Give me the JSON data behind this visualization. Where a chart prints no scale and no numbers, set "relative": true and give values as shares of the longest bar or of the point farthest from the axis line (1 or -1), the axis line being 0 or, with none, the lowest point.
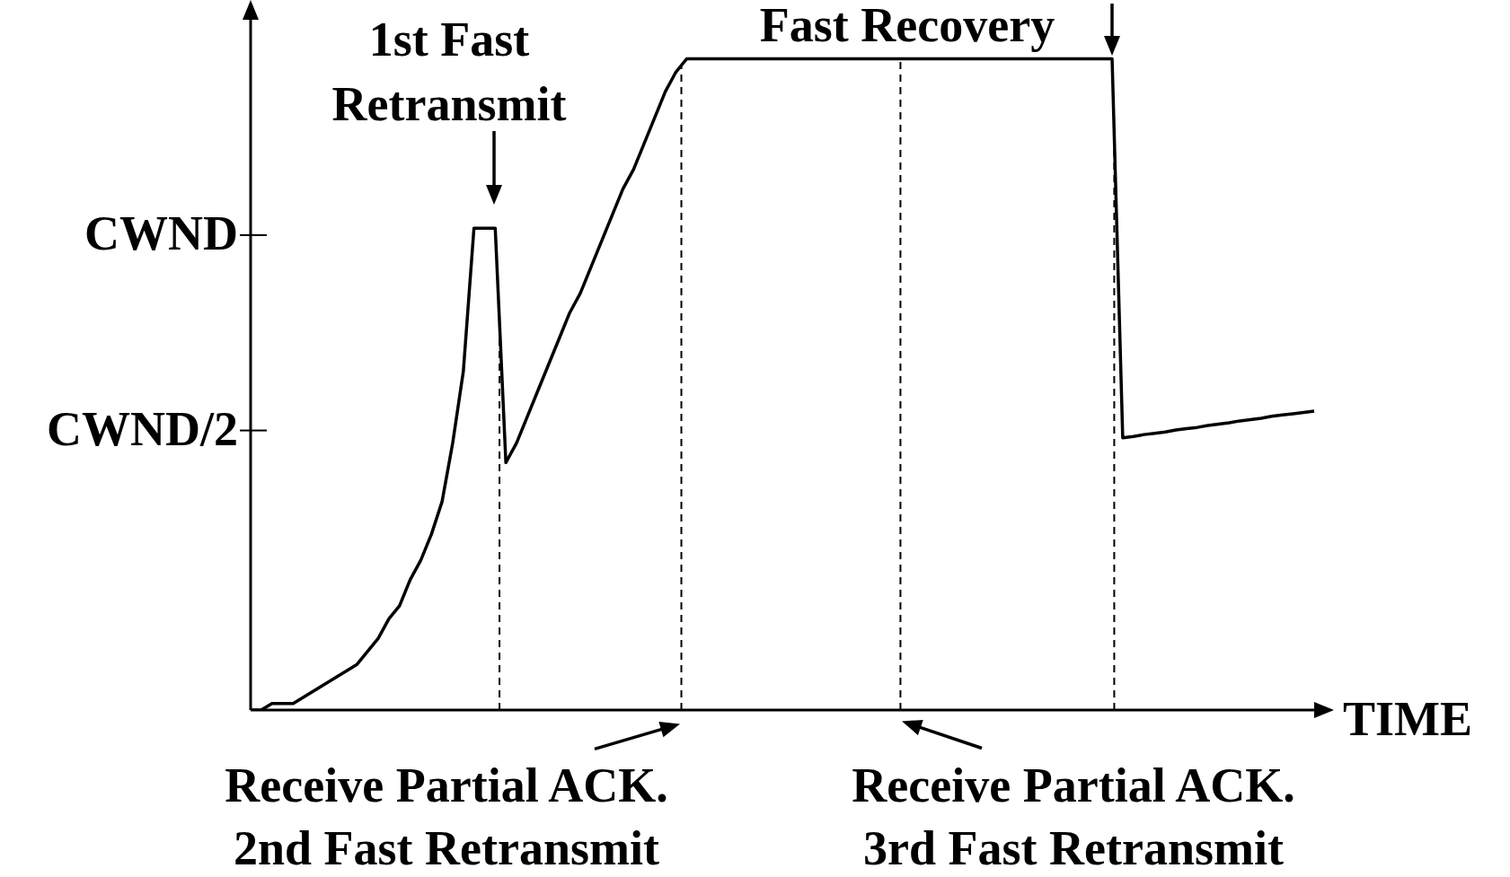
{
  "chart_data": {
    "type": "line",
    "xlabel": "TIME",
    "relative": true,
    "tick_labels": false,
    "grid": false,
    "legend": false,
    "marker": "none",
    "line_style": "solid",
    "categories": [
      null,
      null,
      null,
      null,
      null,
      null,
      null,
      null,
      null,
      null,
      null,
      null,
      null,
      null,
      null,
      null,
      null,
      null,
      null,
      null,
      null,
      null,
      null,
      null,
      null,
      null,
      null,
      null,
      null,
      null,
      null,
      null,
      null,
      null,
      null,
      null,
      null,
      null,
      null,
      null,
      null,
      null,
      null,
      null,
      null,
      null,
      null,
      null,
      null,
      null,
      null,
      null,
      null,
      null,
      null,
      null,
      null,
      null,
      null,
      null,
      null,
      null,
      null,
      null,
      null,
      null,
      null,
      null,
      null,
      null,
      null,
      null,
      null,
      null,
      null,
      null,
      null,
      null,
      null,
      null,
      null,
      null,
      null,
      null,
      null,
      null,
      null,
      null,
      null,
      null,
      null,
      null,
      null,
      null,
      null,
      null,
      null,
      null,
      null,
      null,
      null
    ],
    "series": [
      {
        "color": "#000000",
        "values": [
          0,
          0,
          0.01,
          0.01,
          0.01,
          0.02,
          0.03,
          0.04,
          0.05,
          0.06,
          0.07,
          0.09,
          0.11,
          0.14,
          0.16,
          0.2,
          0.23,
          0.27,
          0.32,
          0.41,
          0.52,
          0.74,
          0.74,
          0.74,
          0.38,
          0.41,
          0.45,
          0.49,
          0.53,
          0.57,
          0.61,
          0.64,
          0.68,
          0.72,
          0.76,
          0.8,
          0.83,
          0.87,
          0.91,
          0.95,
          0.98,
          1,
          1,
          1,
          1,
          1,
          1,
          1,
          1,
          1,
          1,
          1,
          1,
          1,
          1,
          1,
          1,
          1,
          1,
          1,
          1,
          1,
          1,
          1,
          1,
          1,
          1,
          1,
          1,
          1,
          1,
          1,
          1,
          1,
          1,
          1,
          1,
          1,
          1,
          1,
          1,
          1,
          0.418,
          0.42,
          0.423,
          0.425,
          0.427,
          0.43,
          0.432,
          0.434,
          0.437,
          0.439,
          0.441,
          0.444,
          0.446,
          0.448,
          0.451,
          0.453,
          0.455,
          0.457,
          0.459
        ]
      }
    ],
    "annotations": [
      "CWND",
      "CWND/2",
      "1st Fast\nRetransmit",
      "Fast Recovery",
      "Receive Partial ACK.\n2nd Fast Retransmit",
      "Receive Partial ACK.\n3rd Fast Retransmit"
    ]
  }
}
